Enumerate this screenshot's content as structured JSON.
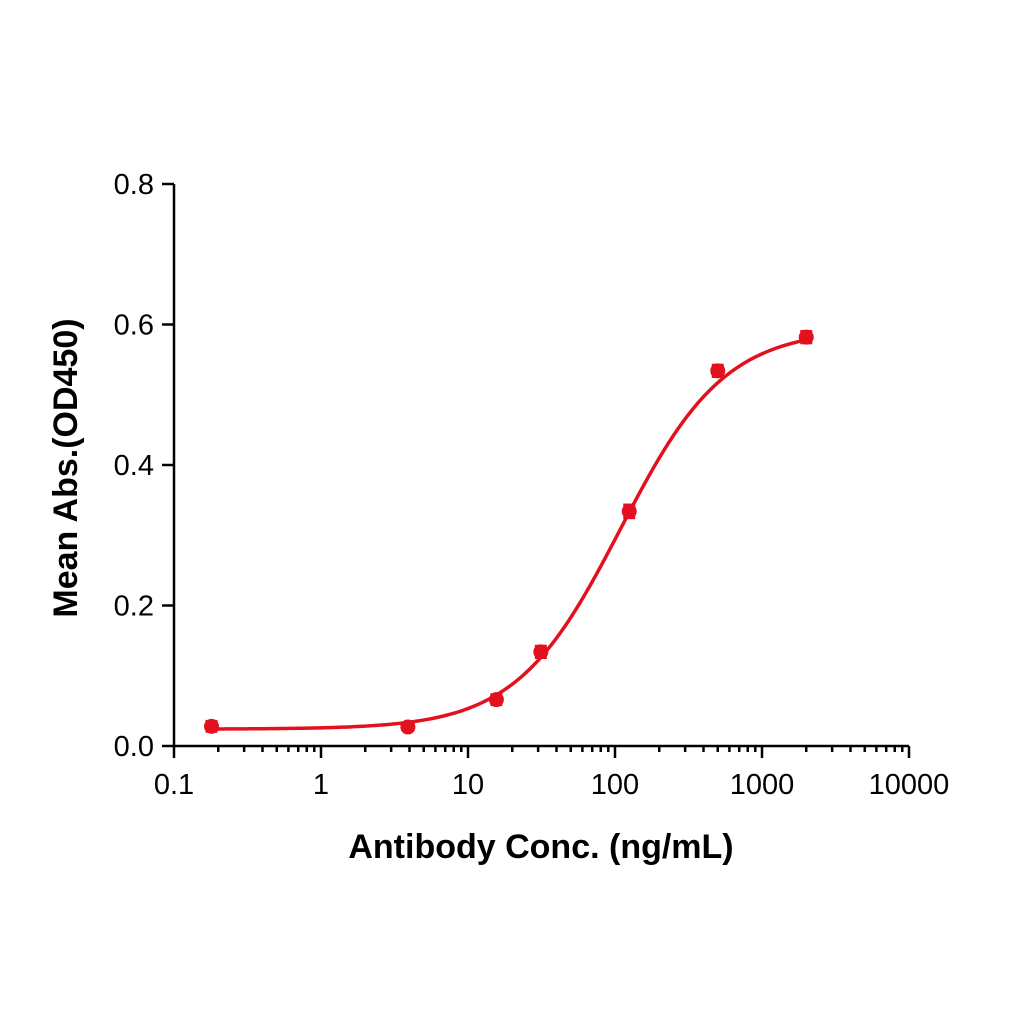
{
  "chart_data": {
    "type": "scatter",
    "title": "",
    "xlabel": "Antibody Conc. (ng/mL)",
    "ylabel": "Mean Abs.(OD450)",
    "x_scale": "log",
    "xlim": [
      0.1,
      10000
    ],
    "ylim": [
      0.0,
      0.8
    ],
    "x_ticks": [
      0.1,
      1,
      10,
      100,
      1000,
      10000
    ],
    "x_tick_labels": [
      "0.1",
      "1",
      "10",
      "100",
      "1000",
      "10000"
    ],
    "y_ticks": [
      0.0,
      0.2,
      0.4,
      0.6,
      0.8
    ],
    "y_tick_labels": [
      "0.0",
      "0.2",
      "0.4",
      "0.6",
      "0.8"
    ],
    "grid": false,
    "legend": "none",
    "color": "#e3101e",
    "series": [
      {
        "x": [
          0.18,
          3.9,
          15.6,
          31.3,
          125,
          500,
          2000
        ],
        "y": [
          0.028,
          0.027,
          0.066,
          0.134,
          0.334,
          0.534,
          0.582
        ],
        "y_error": [
          0.007,
          0.005,
          0.007,
          0.008,
          0.009,
          0.008,
          0.008
        ],
        "fit": "4PL sigmoid",
        "fit_params": {
          "bottom": 0.024,
          "top": 0.594,
          "ec50": 109,
          "hill": 1.22
        }
      }
    ]
  }
}
